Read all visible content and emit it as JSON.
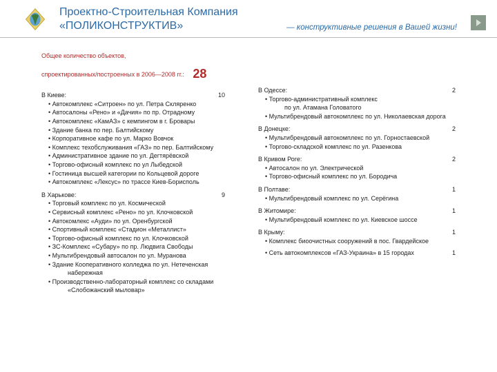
{
  "header": {
    "line1": "Проектно-Строительная Компания",
    "line2": "«ПОЛИКОНСТРУКТИВ»",
    "tagline": "— конструктивные решения в Вашей жизни!"
  },
  "summary": {
    "line1": "Общее количество объектов,",
    "line2": "спроектированных/построенных в 2006—2008 гг.:",
    "total": "28"
  },
  "left": [
    {
      "city": "В Киеве:",
      "count": "10",
      "items": [
        "Автокомплекс «Ситроен» по ул. Петра Скляренко",
        "Автосалоны «Рено» и «Дачия» по пр. Отрадному",
        "Автокомплекс «КамАЗ» с кемпингом в г. Бровары",
        "Здание банка по пер. Балтийскому",
        "Корпоративное кафе по ул. Марко Вовчок",
        "Комплекс техобслуживания «ГАЗ» по пер. Балтийскому",
        "Административное здание по ул. Дегтярёвской",
        "Торгово-офисный комплекс по ул Лыбедской",
        "Гостиница высшей категории по Кольцевой дороге",
        "Автокомплекс «Лексус» по трассе Киев-Борисполь"
      ]
    },
    {
      "city": "В Харькове:",
      "count": "9",
      "items": [
        "Торговый комплекс по ул. Космической",
        "Сервисный комплекс «Рено» по ул. Клочковской",
        "Автокомлекс «Ауди» по ул. Оренбургской",
        "Спортивный комплекс «Стадион «Металлист»",
        "Торгово-офисный комплекс по ул. Клочковской",
        "ЗС-Комплекс «Субару» по пр. Людвига Свободы",
        "Мультибрендовый автосалон по ул. Муранова",
        "Здание Кооперативного колледжа по ул. Нетеченская",
        "набережная",
        "Производственно-лабораторный комплекс со складами",
        "«Слобожанский мыловар»"
      ],
      "indents": [
        8,
        10
      ]
    }
  ],
  "right": [
    {
      "city": "В Одессе:",
      "count": "2",
      "items": [
        "Торгово-административный комплекс",
        "по ул. Атамана Головатого",
        "Мультибрендовый автокомплекс по ул. Николаевская дорога"
      ],
      "indents": [
        1
      ]
    },
    {
      "city": "В Донецке:",
      "count": "2",
      "items": [
        "Мультибрендовый автокомплекс по ул. Горностаевской",
        "Торгово-складской комплекс по ул. Разенкова"
      ]
    },
    {
      "city": "В Кривом Роге:",
      "count": "2",
      "items": [
        "Автосалон по ул. Электрической",
        "Торгово-офисный комплекс по ул. Бородича"
      ]
    },
    {
      "city": "В Полтаве:",
      "count": "1",
      "items": [
        "Мультибрендовый комплекс по ул. Серёгина"
      ]
    },
    {
      "city": "В Житомире:",
      "count": "1",
      "items": [
        "Мультибрендовый комплекс по ул. Киевское шоссе"
      ]
    },
    {
      "city": "В Крыму:",
      "count": "1",
      "items": [
        "Комплекс биоочистных сооружений в пос. Гвардейское"
      ]
    }
  ],
  "extra": {
    "text": "• Сеть автокомплексов «ГАЗ-Украина» в 15 городах",
    "count": "1"
  },
  "colors": {
    "brand_blue": "#2a6aa8",
    "accent_red": "#b02a2a"
  }
}
